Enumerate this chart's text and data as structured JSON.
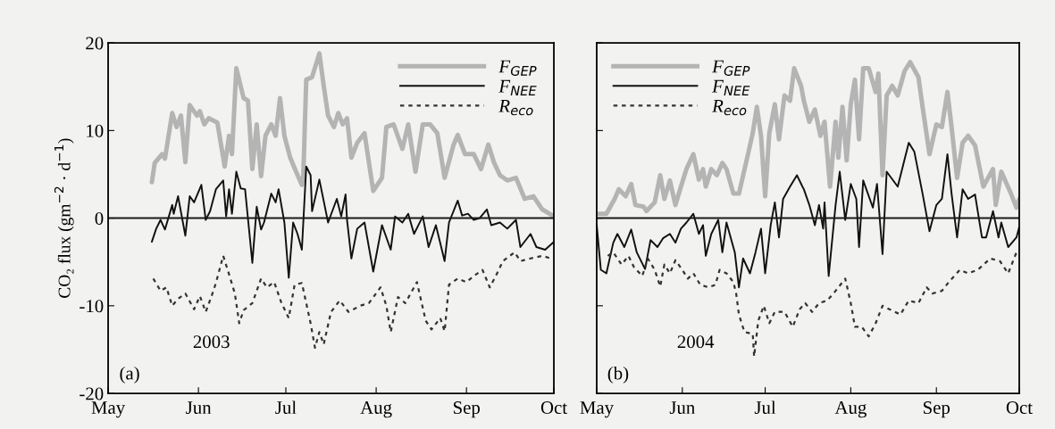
{
  "chart_data": [
    {
      "type": "line",
      "ylabel": "CO₂ flux (gm$^{−2}$ · d$^{−1}$)",
      "annotations": [
        "(a)",
        "2003"
      ],
      "legend": "top right",
      "grid": false,
      "xlim": [
        "2003-05-01",
        "2003-10-01"
      ],
      "xticks": [
        {
          "value": "2003-05-01",
          "label": "May"
        },
        {
          "value": "2003-06-01",
          "label": "Jun"
        },
        {
          "value": "2003-07-01",
          "label": "Jul"
        },
        {
          "value": "2003-08-01",
          "label": "Aug"
        },
        {
          "value": "2003-09-01",
          "label": "Sep"
        },
        {
          "value": "2003-10-01",
          "label": "Oct"
        }
      ],
      "ylim": [
        -20,
        20
      ],
      "yticks": [
        -20,
        -10,
        0,
        10,
        20
      ],
      "ref_lines": [
        {
          "axis": "y",
          "value": 0,
          "label": null,
          "color": "#1a1a1a"
        }
      ],
      "series": [
        {
          "name": "F$_{GEP}$",
          "color": "#b4b4b4",
          "line_style": "solid",
          "x": [
            "2003-05-16",
            "2003-05-17",
            "2003-05-19T12:00",
            "2003-05-20T12:00",
            "2003-05-23",
            "2003-05-24T12:00",
            "2003-05-26",
            "2003-05-27T12:00",
            "2003-05-29",
            "2003-05-31T12:00",
            "2003-06-01T12:00",
            "2003-06-03",
            "2003-06-04T12:00",
            "2003-06-07T12:00",
            "2003-06-10",
            "2003-06-11T12:00",
            "2003-06-12T12:00",
            "2003-06-14",
            "2003-06-16T12:00",
            "2003-06-18",
            "2003-06-19T12:00",
            "2003-06-21",
            "2003-06-22T12:00",
            "2003-06-24",
            "2003-06-26",
            "2003-06-27T12:00",
            "2003-06-29",
            "2003-06-30T12:00",
            "2003-07-02T12:00",
            "2003-07-04T12:00",
            "2003-07-06T12:00",
            "2003-07-07",
            "2003-07-08",
            "2003-07-10",
            "2003-07-12T12:00",
            "2003-07-14",
            "2003-07-15T12:00",
            "2003-07-17T12:00",
            "2003-07-19",
            "2003-07-20T12:00",
            "2003-07-22",
            "2003-07-23T12:00",
            "2003-07-25T12:00",
            "2003-07-28",
            "2003-07-31",
            "2003-08-03",
            "2003-08-04T12:00",
            "2003-08-07",
            "2003-08-10",
            "2003-08-12",
            "2003-08-14T12:00",
            "2003-08-17",
            "2003-08-19T12:00",
            "2003-08-22",
            "2003-08-24T12:00",
            "2003-08-27T12:00",
            "2003-08-29",
            "2003-08-31T12:00",
            "2003-09-03T12:00",
            "2003-09-06",
            "2003-09-08T12:00",
            "2003-09-10T12:00",
            "2003-09-12T12:00",
            "2003-09-15",
            "2003-09-18",
            "2003-09-21",
            "2003-09-24",
            "2003-09-27",
            "2003-09-30T12:00"
          ],
          "values": [
            4.1,
            6.3,
            7.3,
            6.8,
            12.0,
            10.4,
            11.7,
            6.4,
            12.9,
            11.7,
            12.2,
            10.7,
            11.4,
            10.9,
            5.9,
            9.4,
            7.3,
            17.1,
            13.7,
            13.4,
            5.6,
            10.7,
            4.8,
            9.4,
            10.7,
            9.4,
            13.7,
            9.4,
            6.9,
            5.3,
            3.8,
            4.9,
            15.8,
            16.1,
            18.8,
            15.1,
            11.7,
            10.4,
            12.0,
            10.7,
            11.4,
            6.9,
            8.6,
            9.7,
            3.1,
            4.6,
            10.4,
            10.7,
            7.9,
            10.7,
            5.3,
            10.7,
            10.7,
            9.7,
            4.6,
            8.3,
            9.5,
            7.3,
            7.3,
            5.6,
            8.4,
            6.3,
            4.9,
            4.3,
            4.6,
            2.2,
            2.5,
            1.0,
            0.3
          ]
        },
        {
          "name": "F$_{NEE}$",
          "color": "#111111",
          "line_style": "solid",
          "x": [
            "2003-05-16",
            "2003-05-17T12:00",
            "2003-05-19",
            "2003-05-20T12:00",
            "2003-05-23",
            "2003-05-23T12:00",
            "2003-05-25",
            "2003-05-27T12:00",
            "2003-05-29",
            "2003-05-30T12:00",
            "2003-06-02",
            "2003-06-03T12:00",
            "2003-06-05",
            "2003-06-07",
            "2003-06-09T12:00",
            "2003-06-10T12:00",
            "2003-06-11T12:00",
            "2003-06-12T12:00",
            "2003-06-14",
            "2003-06-15T12:00",
            "2003-06-17",
            "2003-06-19T12:00",
            "2003-06-21",
            "2003-06-22T12:00",
            "2003-06-23T12:00",
            "2003-06-26",
            "2003-06-27T12:00",
            "2003-06-28T12:00",
            "2003-06-30T12:00",
            "2003-07-02",
            "2003-07-03T12:00",
            "2003-07-05",
            "2003-07-06T12:00",
            "2003-07-08",
            "2003-07-09T12:00",
            "2003-07-10",
            "2003-07-12T12:00",
            "2003-07-15T12:00",
            "2003-07-18T12:00",
            "2003-07-20",
            "2003-07-21T12:00",
            "2003-07-22",
            "2003-07-23T12:00",
            "2003-07-25T12:00",
            "2003-07-28",
            "2003-07-31",
            "2003-08-03",
            "2003-08-06",
            "2003-08-07T12:00",
            "2003-08-10",
            "2003-08-12",
            "2003-08-14",
            "2003-08-17",
            "2003-08-19",
            "2003-08-21T12:00",
            "2003-08-24T12:00",
            "2003-08-26",
            "2003-08-29",
            "2003-08-30T12:00",
            "2003-09-01T12:00",
            "2003-09-03T12:00",
            "2003-09-05T12:00",
            "2003-09-08",
            "2003-09-09T12:00",
            "2003-09-12T12:00",
            "2003-09-15",
            "2003-09-18",
            "2003-09-19T12:00",
            "2003-09-23",
            "2003-09-25",
            "2003-09-28",
            "2003-10-01"
          ],
          "values": [
            -2.7,
            -1.2,
            -0.2,
            -1.3,
            1.5,
            0.5,
            2.5,
            -2.0,
            2.5,
            1.8,
            3.8,
            -0.2,
            0.8,
            3.3,
            4.3,
            0.2,
            3.3,
            0.5,
            5.3,
            3.4,
            3.3,
            -5.1,
            1.3,
            -1.3,
            -0.5,
            2.8,
            1.8,
            3.3,
            -0.5,
            -6.8,
            -0.5,
            -1.8,
            -3.6,
            5.9,
            4.9,
            0.8,
            4.4,
            -0.5,
            2.2,
            0.2,
            2.7,
            -0.2,
            -4.6,
            -1.2,
            -0.5,
            -6.1,
            -0.8,
            -3.6,
            0.2,
            -0.5,
            0.5,
            -1.8,
            0.2,
            -3.3,
            -0.8,
            -4.9,
            -0.5,
            2.0,
            0.3,
            0.5,
            -0.2,
            0.0,
            1.0,
            -0.8,
            -0.5,
            -1.2,
            -0.2,
            -3.3,
            -1.8,
            -3.3,
            -3.6,
            -2.7
          ]
        },
        {
          "name": "R$_{eco}$",
          "color": "#333333",
          "line_style": "dotted",
          "x": [
            "2003-05-16T12:00",
            "2003-05-19",
            "2003-05-21",
            "2003-05-23",
            "2003-05-25",
            "2003-05-27T12:00",
            "2003-05-30T12:00",
            "2003-06-01T12:00",
            "2003-06-03T12:00",
            "2003-06-05T12:00",
            "2003-06-07",
            "2003-06-09T12:00",
            "2003-06-11T12:00",
            "2003-06-13T12:00",
            "2003-06-15",
            "2003-06-16T12:00",
            "2003-06-19T12:00",
            "2003-06-22T12:00",
            "2003-06-24T12:00",
            "2003-06-27",
            "2003-06-29T12:00",
            "2003-07-02",
            "2003-07-04",
            "2003-07-06T12:00",
            "2003-07-09T12:00",
            "2003-07-11",
            "2003-07-12T12:00",
            "2003-07-14",
            "2003-07-16T12:00",
            "2003-07-19T12:00",
            "2003-07-22T12:00",
            "2003-07-26T12:00",
            "2003-07-29T12:00",
            "2003-08-02T12:00",
            "2003-08-04T12:00",
            "2003-08-06",
            "2003-08-08T12:00",
            "2003-08-11",
            "2003-08-15",
            "2003-08-18",
            "2003-08-20",
            "2003-08-23",
            "2003-08-24T12:00",
            "2003-08-26",
            "2003-08-29",
            "2003-09-01",
            "2003-09-03T12:00",
            "2003-09-06T12:00",
            "2003-09-09",
            "2003-09-11T12:00",
            "2003-09-13T12:00",
            "2003-09-17T12:00",
            "2003-09-19T12:00",
            "2003-09-23",
            "2003-09-27",
            "2003-09-30"
          ],
          "values": [
            -6.9,
            -8.3,
            -7.9,
            -10.0,
            -9.2,
            -8.6,
            -10.4,
            -8.9,
            -10.7,
            -8.9,
            -7.4,
            -4.3,
            -6.4,
            -8.6,
            -12.0,
            -10.5,
            -9.7,
            -6.9,
            -7.9,
            -7.3,
            -9.7,
            -11.4,
            -7.6,
            -7.4,
            -12.0,
            -14.8,
            -13.0,
            -14.4,
            -10.7,
            -9.4,
            -10.7,
            -10.0,
            -9.7,
            -7.9,
            -10.0,
            -13.0,
            -9.0,
            -9.7,
            -7.3,
            -11.7,
            -12.7,
            -11.4,
            -12.9,
            -7.6,
            -6.9,
            -7.3,
            -6.6,
            -5.9,
            -7.9,
            -6.3,
            -4.9,
            -3.9,
            -4.9,
            -4.6,
            -4.3,
            -4.6
          ]
        }
      ]
    },
    {
      "type": "line",
      "annotations": [
        "(b)",
        "2004"
      ],
      "legend": "top left",
      "grid": false,
      "tick_labels": "x",
      "xlim": [
        "2004-05-01",
        "2004-10-01"
      ],
      "xticks": [
        {
          "value": "2004-05-01",
          "label": "May"
        },
        {
          "value": "2004-06-01",
          "label": "Jun"
        },
        {
          "value": "2004-07-01",
          "label": "Jul"
        },
        {
          "value": "2004-08-01",
          "label": "Aug"
        },
        {
          "value": "2004-09-01",
          "label": "Sep"
        },
        {
          "value": "2004-10-01",
          "label": "Oct"
        }
      ],
      "ylim": [
        -20,
        20
      ],
      "yticks": [
        -20,
        -10,
        0,
        10,
        20
      ],
      "ref_lines": [
        {
          "axis": "y",
          "value": 0,
          "label": null,
          "color": "#1a1a1a"
        }
      ],
      "series": [
        {
          "name": "F$_{GEP}$",
          "color": "#b4b4b4",
          "line_style": "solid",
          "x": [
            "2004-05-01T12:00",
            "2004-05-04T12:00",
            "2004-05-07T12:00",
            "2004-05-09",
            "2004-05-11T12:00",
            "2004-05-13T12:00",
            "2004-05-15",
            "2004-05-18",
            "2004-05-19",
            "2004-05-22",
            "2004-05-24",
            "2004-05-25T12:00",
            "2004-05-27T12:00",
            "2004-05-29T12:00",
            "2004-05-31T12:00",
            "2004-06-02T12:00",
            "2004-06-05",
            "2004-06-07",
            "2004-06-08T12:00",
            "2004-06-09T12:00",
            "2004-06-11T12:00",
            "2004-06-13T12:00",
            "2004-06-15T12:00",
            "2004-06-17",
            "2004-06-19T12:00",
            "2004-06-21T12:00",
            "2004-06-24T12:00",
            "2004-06-26T12:00",
            "2004-06-28",
            "2004-06-29T12:00",
            "2004-07-01",
            "2004-07-02T12:00",
            "2004-07-04T12:00",
            "2004-07-06",
            "2004-07-08",
            "2004-07-10",
            "2004-07-11T12:00",
            "2004-07-14",
            "2004-07-15",
            "2004-07-17",
            "2004-07-19",
            "2004-07-21",
            "2004-07-22T12:00",
            "2004-07-24T12:00",
            "2004-07-26T12:00",
            "2004-07-27T12:00",
            "2004-07-29",
            "2004-07-30T12:00",
            "2004-08-01",
            "2004-08-02T12:00",
            "2004-08-04",
            "2004-08-05T12:00",
            "2004-08-07T12:00",
            "2004-08-10",
            "2004-08-11",
            "2004-08-12T12:00",
            "2004-08-14",
            "2004-08-16",
            "2004-08-18",
            "2004-08-20T12:00",
            "2004-08-22T12:00",
            "2004-08-25T12:00",
            "2004-08-27",
            "2004-08-29T12:00",
            "2004-09-01",
            "2004-09-03",
            "2004-09-05",
            "2004-09-06T12:00",
            "2004-09-08T12:00",
            "2004-09-10T12:00",
            "2004-09-12T12:00",
            "2004-09-15",
            "2004-09-18",
            "2004-09-21T12:00",
            "2004-09-22T12:00",
            "2004-09-24T12:00",
            "2004-09-28",
            "2004-09-30",
            "2004-10-01"
          ],
          "values": [
            0.5,
            0.5,
            2.2,
            3.3,
            2.5,
            3.9,
            1.5,
            1.3,
            0.8,
            1.8,
            4.9,
            2.2,
            4.3,
            1.5,
            3.6,
            5.6,
            7.3,
            4.4,
            5.6,
            3.6,
            5.6,
            4.9,
            6.3,
            5.6,
            2.8,
            2.8,
            6.9,
            9.7,
            12.7,
            9.4,
            2.5,
            9.7,
            13.0,
            9.0,
            14.0,
            13.4,
            17.1,
            15.1,
            13.4,
            11.0,
            12.4,
            9.4,
            11.0,
            3.6,
            11.0,
            6.9,
            12.7,
            6.6,
            13.0,
            15.8,
            9.0,
            17.1,
            17.1,
            14.4,
            16.5,
            4.9,
            14.0,
            15.1,
            14.0,
            16.8,
            17.8,
            16.1,
            12.7,
            7.3,
            10.7,
            10.4,
            14.4,
            10.4,
            4.6,
            8.6,
            9.4,
            8.3,
            3.6,
            5.6,
            1.5,
            5.3,
            2.8,
            1.2,
            2.2
          ]
        },
        {
          "name": "F$_{NEE}$",
          "color": "#111111",
          "line_style": "solid",
          "x": [
            "2004-05-01",
            "2004-05-02T12:00",
            "2004-05-04T12:00",
            "2004-05-07",
            "2004-05-08T12:00",
            "2004-05-11",
            "2004-05-13T12:00",
            "2004-05-15T12:00",
            "2004-05-18T12:00",
            "2004-05-20T12:00",
            "2004-05-23",
            "2004-05-25",
            "2004-05-27T12:00",
            "2004-05-29T12:00",
            "2004-05-31T12:00",
            "2004-06-02T12:00",
            "2004-06-05",
            "2004-06-07",
            "2004-06-08T12:00",
            "2004-06-09T12:00",
            "2004-06-11T12:00",
            "2004-06-14",
            "2004-06-15T12:00",
            "2004-06-17",
            "2004-06-20",
            "2004-06-21T12:00",
            "2004-06-23",
            "2004-06-25T12:00",
            "2004-06-27T12:00",
            "2004-06-29T12:00",
            "2004-07-01",
            "2004-07-03",
            "2004-07-04T12:00",
            "2004-07-06",
            "2004-07-07T12:00",
            "2004-07-10",
            "2004-07-12T12:00",
            "2004-07-14T12:00",
            "2004-07-15",
            "2004-07-17",
            "2004-07-19",
            "2004-07-20T12:00",
            "2004-07-22",
            "2004-07-22T12:00",
            "2004-07-24",
            "2004-07-26T12:00",
            "2004-07-28",
            "2004-07-30",
            "2004-08-01",
            "2004-08-03",
            "2004-08-04",
            "2004-08-05T12:00",
            "2004-08-09",
            "2004-08-10T12:00",
            "2004-08-12T12:00",
            "2004-08-14",
            "2004-08-18",
            "2004-08-22",
            "2004-08-24",
            "2004-08-27",
            "2004-08-29T12:00",
            "2004-09-01",
            "2004-09-03",
            "2004-09-05",
            "2004-09-06T12:00",
            "2004-09-08T12:00",
            "2004-09-10T12:00",
            "2004-09-12T12:00",
            "2004-09-15",
            "2004-09-17T12:00",
            "2004-09-19",
            "2004-09-21T12:00",
            "2004-09-23T12:00",
            "2004-09-24T12:00",
            "2004-09-27",
            "2004-09-30",
            "2004-10-01"
          ],
          "values": [
            -0.8,
            -5.9,
            -6.3,
            -2.8,
            -1.8,
            -3.3,
            -1.3,
            -3.9,
            -5.8,
            -2.5,
            -3.3,
            -2.3,
            -1.8,
            -2.8,
            -1.2,
            -0.5,
            0.5,
            -1.8,
            -0.8,
            -4.3,
            -1.8,
            -0.2,
            -3.9,
            -0.5,
            -3.9,
            -7.9,
            -4.6,
            -6.3,
            -3.9,
            -1.2,
            -6.3,
            -0.8,
            1.8,
            -2.2,
            2.2,
            3.6,
            4.9,
            3.6,
            3.3,
            1.5,
            -0.8,
            1.5,
            -1.2,
            1.8,
            -6.6,
            1.5,
            5.3,
            -0.2,
            3.9,
            2.2,
            -3.3,
            4.3,
            1.2,
            3.9,
            -4.1,
            5.3,
            3.6,
            8.6,
            7.6,
            2.8,
            -1.5,
            1.5,
            2.2,
            7.3,
            2.8,
            -2.2,
            3.3,
            2.2,
            2.7,
            -2.2,
            -2.2,
            0.8,
            -2.2,
            -0.5,
            -3.3,
            -2.2,
            -1.0
          ]
        },
        {
          "name": "R$_{eco}$",
          "color": "#333333",
          "line_style": "dotted",
          "x": [
            "2004-05-05",
            "2004-05-07",
            "2004-05-10",
            "2004-05-12T12:00",
            "2004-05-14T12:00",
            "2004-05-17T12:00",
            "2004-05-19T12:00",
            "2004-05-22",
            "2004-05-24",
            "2004-05-25T12:00",
            "2004-05-27T12:00",
            "2004-05-29T12:00",
            "2004-06-01",
            "2004-06-03",
            "2004-06-05",
            "2004-06-07T12:00",
            "2004-06-10T12:00",
            "2004-06-13",
            "2004-06-14T12:00",
            "2004-06-17",
            "2004-06-19T12:00",
            "2004-06-20T12:00",
            "2004-06-21T12:00",
            "2004-06-23T12:00",
            "2004-06-26T12:00",
            "2004-06-27",
            "2004-06-28T12:00",
            "2004-06-30T12:00",
            "2004-07-02T12:00",
            "2004-07-04T12:00",
            "2004-07-08",
            "2004-07-11",
            "2004-07-13T12:00",
            "2004-07-15T12:00",
            "2004-07-18",
            "2004-07-20T12:00",
            "2004-07-23T12:00",
            "2004-07-26T12:00",
            "2004-07-30",
            "2004-08-01",
            "2004-08-02T12:00",
            "2004-08-05",
            "2004-08-07T12:00",
            "2004-08-10",
            "2004-08-12T12:00",
            "2004-08-15",
            "2004-08-19",
            "2004-08-22",
            "2004-08-25T12:00",
            "2004-08-28T12:00",
            "2004-08-30T12:00",
            "2004-09-03",
            "2004-09-05T12:00",
            "2004-09-09T12:00",
            "2004-09-12T12:00",
            "2004-09-16",
            "2004-09-20T12:00",
            "2004-09-24",
            "2004-09-27",
            "2004-09-30"
          ],
          "values": [
            -4.3,
            -3.9,
            -5.3,
            -4.3,
            -5.6,
            -6.6,
            -4.6,
            -5.9,
            -7.8,
            -5.3,
            -6.3,
            -4.8,
            -5.9,
            -6.9,
            -6.3,
            -7.6,
            -7.9,
            -7.6,
            -5.9,
            -6.3,
            -7.3,
            -8.6,
            -11.0,
            -13.0,
            -13.2,
            -15.8,
            -11.7,
            -10.0,
            -12.0,
            -10.7,
            -10.7,
            -12.4,
            -10.4,
            -9.7,
            -10.7,
            -9.7,
            -9.4,
            -8.3,
            -6.9,
            -9.7,
            -12.4,
            -12.4,
            -13.5,
            -12.0,
            -10.0,
            -10.4,
            -11.0,
            -9.4,
            -9.7,
            -7.9,
            -8.6,
            -8.3,
            -7.3,
            -5.9,
            -6.3,
            -5.9,
            -4.6,
            -4.9,
            -6.3,
            -3.9
          ]
        }
      ]
    }
  ]
}
